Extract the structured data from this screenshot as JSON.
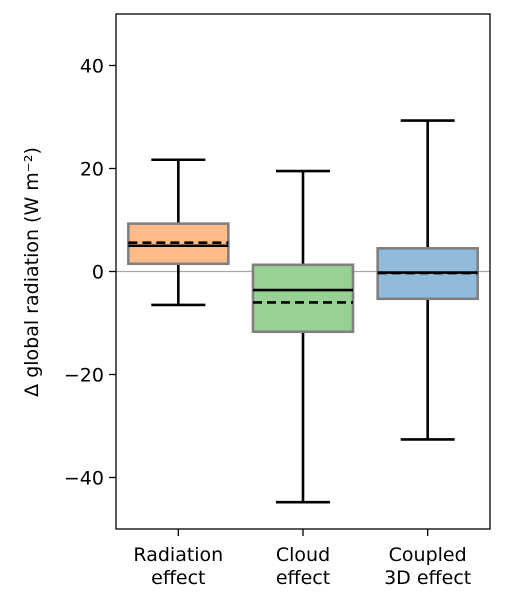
{
  "chart_data": {
    "type": "box",
    "ylabel": "Δ global radiation (W m⁻²)",
    "ylim": [
      -50,
      50
    ],
    "yticks": [
      {
        "value": 40,
        "label": "40"
      },
      {
        "value": 20,
        "label": "20"
      },
      {
        "value": 0,
        "label": "0"
      },
      {
        "value": -20,
        "label": "−20"
      },
      {
        "value": -40,
        "label": "−40"
      }
    ],
    "reference_line": 0,
    "categories": [
      {
        "lines": [
          "Radiation",
          "effect"
        ]
      },
      {
        "lines": [
          "Cloud",
          "effect"
        ]
      },
      {
        "lines": [
          "Coupled",
          "3D effect"
        ]
      }
    ],
    "boxes": [
      {
        "whisker_low": -6.5,
        "q1": 1.5,
        "median": 5.0,
        "mean": 5.6,
        "q3": 9.3,
        "whisker_high": 21.7,
        "color": "#ffbb88"
      },
      {
        "whisker_low": -44.8,
        "q1": -11.7,
        "median": -3.6,
        "mean": -6.0,
        "q3": 1.3,
        "whisker_high": 19.5,
        "color": "#98d194"
      },
      {
        "whisker_low": -32.6,
        "q1": -5.3,
        "median": -0.2,
        "mean": -0.3,
        "q3": 4.5,
        "whisker_high": 29.3,
        "color": "#90bbdd"
      }
    ],
    "box_edge_color": "#808080",
    "line_color": "#000000",
    "grid": false
  }
}
